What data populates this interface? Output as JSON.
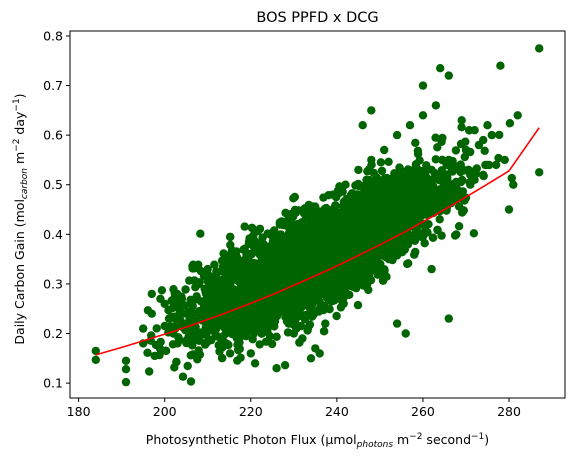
{
  "chart_data": {
    "type": "scatter",
    "title": "BOS PPFD x DCG",
    "xlabel": {
      "prefix": "Photosynthetic Photon Flux (μmol",
      "subscript": "photons",
      "middle": " m",
      "superscript1": "−2",
      "middle2": " second",
      "superscript2": "−1",
      "suffix": ")"
    },
    "ylabel": {
      "prefix": "Daily Carbon Gain (mol",
      "subscript": "carbon",
      "middle": " m",
      "superscript1": "−2",
      "middle2": " day",
      "superscript2": "−1",
      "suffix": ")"
    },
    "xlim": [
      178,
      293
    ],
    "ylim": [
      0.07,
      0.81
    ],
    "xticks": [
      180,
      200,
      220,
      240,
      260,
      280
    ],
    "yticks": [
      0.1,
      0.2,
      0.3,
      0.4,
      0.5,
      0.6,
      0.7,
      0.8
    ],
    "grid": false,
    "point_color": "#006400",
    "fit_color": "#ff0000",
    "series": [
      {
        "kind": "points",
        "x": [
          184,
          184,
          191,
          191,
          191,
          195,
          195,
          197,
          197,
          199,
          200,
          201,
          202,
          203,
          204,
          205,
          206,
          207,
          208,
          209,
          210,
          211,
          212,
          213,
          214,
          215,
          216,
          217,
          218,
          219,
          220,
          221,
          222,
          223,
          224,
          225,
          226,
          227,
          228,
          229,
          230,
          231,
          232,
          233,
          234,
          235,
          236,
          237,
          238,
          239,
          240,
          241,
          242,
          243,
          244,
          245,
          246,
          247,
          248,
          249,
          250,
          251,
          252,
          253,
          254,
          255,
          256,
          257,
          258,
          259,
          260,
          261,
          262,
          263,
          264,
          265,
          266,
          267,
          268,
          269,
          270,
          271,
          272,
          273,
          274,
          275,
          276,
          277,
          278,
          279,
          280,
          281,
          282,
          287,
          287,
          206,
          210,
          214,
          218,
          222,
          226,
          230,
          234,
          238,
          242,
          246,
          250,
          254,
          258,
          262,
          266,
          270,
          274,
          212,
          216,
          220,
          224,
          228,
          232,
          236,
          240,
          244,
          248,
          252,
          256,
          260,
          264,
          268,
          272,
          203,
          207,
          211,
          215,
          219,
          223,
          227,
          231,
          235,
          239,
          243,
          247,
          251,
          255,
          259,
          263,
          267,
          271,
          275,
          262,
          266,
          264,
          258,
          256,
          254,
          260,
          235,
          236,
          234,
          248,
          246,
          229,
          230,
          232,
          220,
          221,
          226
        ],
        "y": [
          0.165,
          0.147,
          0.145,
          0.128,
          0.102,
          0.21,
          0.18,
          0.28,
          0.24,
          0.27,
          0.26,
          0.23,
          0.2,
          0.22,
          0.27,
          0.24,
          0.26,
          0.2,
          0.3,
          0.25,
          0.33,
          0.26,
          0.32,
          0.29,
          0.23,
          0.34,
          0.27,
          0.31,
          0.24,
          0.36,
          0.3,
          0.33,
          0.26,
          0.38,
          0.32,
          0.29,
          0.4,
          0.31,
          0.35,
          0.27,
          0.41,
          0.36,
          0.31,
          0.45,
          0.38,
          0.33,
          0.44,
          0.39,
          0.35,
          0.48,
          0.41,
          0.36,
          0.5,
          0.42,
          0.38,
          0.53,
          0.44,
          0.39,
          0.55,
          0.46,
          0.4,
          0.57,
          0.47,
          0.42,
          0.6,
          0.48,
          0.43,
          0.62,
          0.49,
          0.44,
          0.64,
          0.5,
          0.45,
          0.66,
          0.52,
          0.46,
          0.72,
          0.54,
          0.48,
          0.63,
          0.57,
          0.5,
          0.61,
          0.58,
          0.52,
          0.62,
          0.6,
          0.54,
          0.74,
          0.55,
          0.45,
          0.5,
          0.64,
          0.775,
          0.525,
          0.23,
          0.27,
          0.29,
          0.31,
          0.33,
          0.35,
          0.37,
          0.39,
          0.41,
          0.43,
          0.45,
          0.47,
          0.49,
          0.51,
          0.53,
          0.55,
          0.57,
          0.59,
          0.21,
          0.23,
          0.25,
          0.27,
          0.29,
          0.31,
          0.33,
          0.35,
          0.37,
          0.39,
          0.41,
          0.43,
          0.45,
          0.47,
          0.49,
          0.51,
          0.18,
          0.2,
          0.22,
          0.24,
          0.26,
          0.28,
          0.3,
          0.32,
          0.34,
          0.36,
          0.38,
          0.4,
          0.42,
          0.44,
          0.46,
          0.48,
          0.5,
          0.52,
          0.54,
          0.33,
          0.23,
          0.735,
          0.4,
          0.2,
          0.22,
          0.7,
          0.17,
          0.16,
          0.15,
          0.65,
          0.62,
          0.28,
          0.2,
          0.19,
          0.16,
          0.14,
          0.13
        ]
      },
      {
        "kind": "fit",
        "x": [
          184,
          190,
          196,
          202,
          208,
          214,
          220,
          226,
          232,
          238,
          244,
          250,
          256,
          262,
          268,
          274,
          280,
          287
        ],
        "y": [
          0.157,
          0.172,
          0.188,
          0.204,
          0.222,
          0.241,
          0.261,
          0.282,
          0.305,
          0.328,
          0.353,
          0.379,
          0.406,
          0.435,
          0.465,
          0.496,
          0.528,
          0.615
        ]
      }
    ]
  }
}
